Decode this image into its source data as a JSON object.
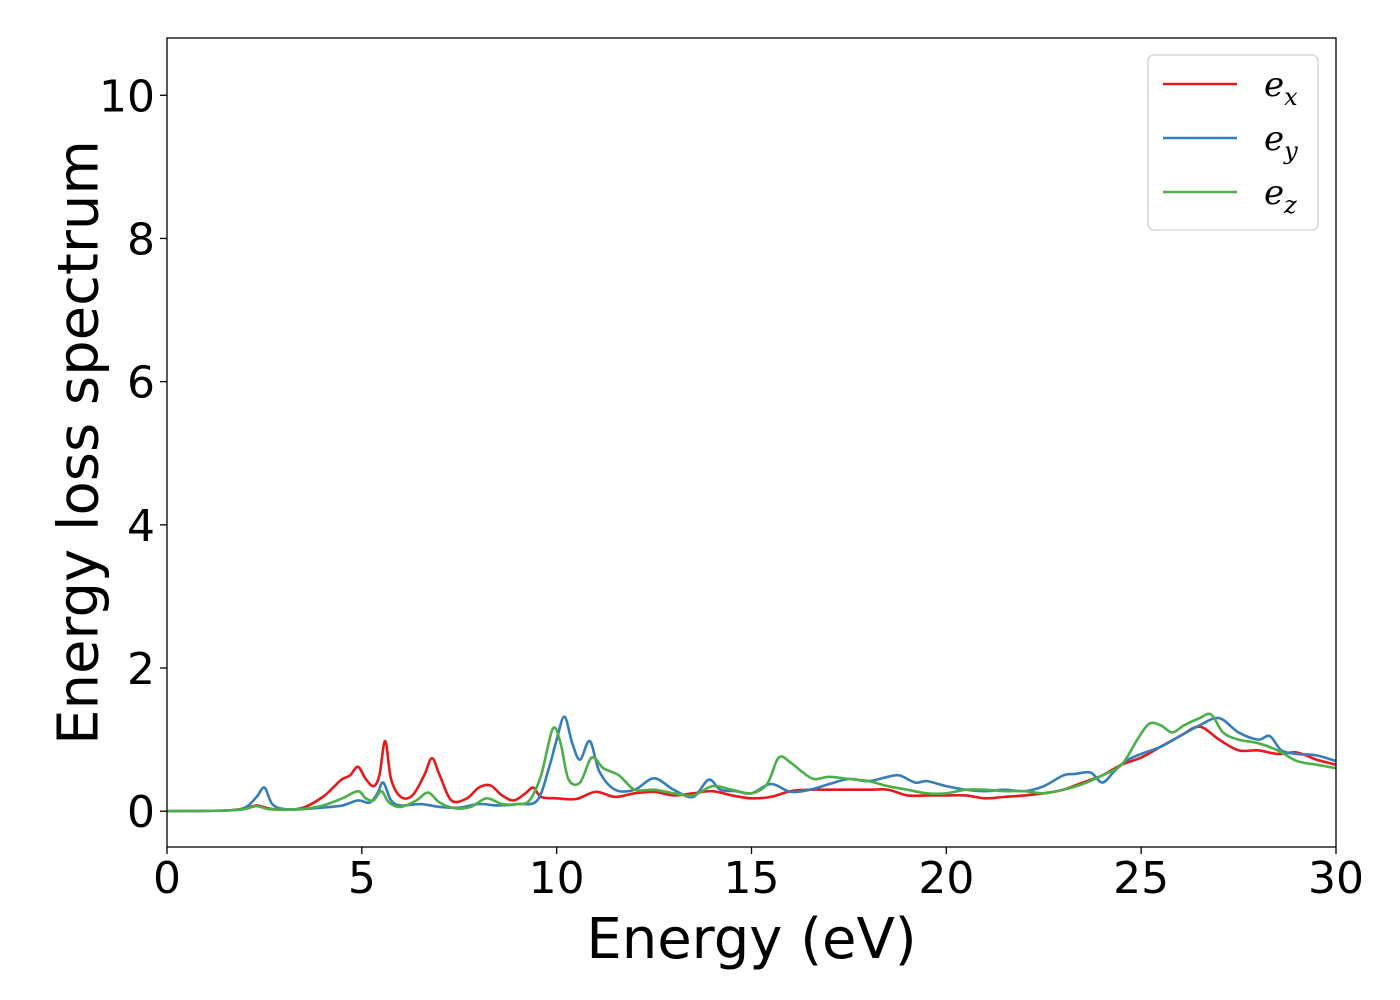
{
  "chart_data": {
    "type": "line",
    "title": "",
    "xlabel": "Energy (eV)",
    "ylabel": "Energy loss spectrum",
    "xlim": [
      0,
      30
    ],
    "ylim": [
      -0.5,
      10.8
    ],
    "xticks": [
      0,
      5,
      10,
      15,
      20,
      25,
      30
    ],
    "yticks": [
      0,
      2,
      4,
      6,
      8,
      10
    ],
    "grid": false,
    "legend_position": "top-right",
    "series": [
      {
        "name": "e_x",
        "label_base": "e",
        "label_sub": "x",
        "color": "#e41a1c",
        "x": [
          0,
          1.5,
          2.0,
          2.3,
          2.6,
          3.0,
          3.5,
          4.0,
          4.3,
          4.5,
          4.7,
          4.9,
          5.1,
          5.3,
          5.45,
          5.6,
          5.75,
          6.0,
          6.3,
          6.6,
          6.8,
          7.0,
          7.3,
          7.7,
          8.0,
          8.3,
          8.6,
          8.9,
          9.2,
          9.4,
          9.6,
          10.0,
          10.5,
          11.0,
          11.5,
          12.0,
          12.5,
          13.0,
          13.5,
          14.0,
          14.5,
          15.0,
          15.5,
          16.0,
          16.5,
          17.0,
          17.5,
          18.0,
          18.5,
          19.0,
          19.5,
          20.0,
          20.5,
          21.0,
          21.5,
          22.0,
          22.5,
          23.0,
          23.5,
          24.0,
          24.5,
          25.0,
          25.5,
          26.0,
          26.5,
          27.0,
          27.5,
          28.0,
          28.5,
          29.0,
          29.5,
          30.0
        ],
        "values": [
          0.0,
          0.01,
          0.04,
          0.08,
          0.04,
          0.02,
          0.05,
          0.2,
          0.35,
          0.45,
          0.5,
          0.62,
          0.45,
          0.35,
          0.5,
          0.98,
          0.45,
          0.2,
          0.22,
          0.5,
          0.74,
          0.5,
          0.15,
          0.18,
          0.33,
          0.36,
          0.22,
          0.15,
          0.25,
          0.33,
          0.2,
          0.18,
          0.17,
          0.27,
          0.2,
          0.25,
          0.27,
          0.22,
          0.25,
          0.28,
          0.22,
          0.18,
          0.2,
          0.28,
          0.3,
          0.3,
          0.3,
          0.3,
          0.3,
          0.22,
          0.22,
          0.22,
          0.22,
          0.18,
          0.2,
          0.22,
          0.25,
          0.3,
          0.4,
          0.5,
          0.65,
          0.75,
          0.9,
          1.05,
          1.18,
          1.0,
          0.85,
          0.85,
          0.8,
          0.82,
          0.72,
          0.65
        ]
      },
      {
        "name": "e_y",
        "label_base": "e",
        "label_sub": "y",
        "color": "#377eb8",
        "x": [
          0,
          1.5,
          2.0,
          2.3,
          2.5,
          2.7,
          3.0,
          3.5,
          4.0,
          4.5,
          4.9,
          5.2,
          5.4,
          5.55,
          5.75,
          6.0,
          6.5,
          7.0,
          7.5,
          8.0,
          8.5,
          9.0,
          9.5,
          9.8,
          10.0,
          10.2,
          10.4,
          10.6,
          10.85,
          11.1,
          11.5,
          12.0,
          12.5,
          13.0,
          13.5,
          13.9,
          14.2,
          14.6,
          15.0,
          15.5,
          16.0,
          16.5,
          17.0,
          17.5,
          18.0,
          18.5,
          18.8,
          19.2,
          19.5,
          20.0,
          20.5,
          21.0,
          21.5,
          22.0,
          22.5,
          23.0,
          23.3,
          23.7,
          24.0,
          24.3,
          24.6,
          25.0,
          25.5,
          26.0,
          26.5,
          27.0,
          27.5,
          28.0,
          28.3,
          28.6,
          29.0,
          29.5,
          30.0
        ],
        "values": [
          0.0,
          0.01,
          0.05,
          0.2,
          0.33,
          0.1,
          0.03,
          0.03,
          0.05,
          0.08,
          0.15,
          0.12,
          0.25,
          0.4,
          0.15,
          0.08,
          0.1,
          0.06,
          0.05,
          0.1,
          0.08,
          0.1,
          0.15,
          0.6,
          1.0,
          1.32,
          0.95,
          0.72,
          0.98,
          0.55,
          0.3,
          0.3,
          0.46,
          0.3,
          0.2,
          0.44,
          0.3,
          0.28,
          0.25,
          0.38,
          0.27,
          0.3,
          0.38,
          0.45,
          0.42,
          0.48,
          0.5,
          0.4,
          0.42,
          0.35,
          0.3,
          0.28,
          0.3,
          0.28,
          0.35,
          0.5,
          0.52,
          0.54,
          0.4,
          0.55,
          0.7,
          0.8,
          0.9,
          1.05,
          1.2,
          1.3,
          1.1,
          1.0,
          1.05,
          0.85,
          0.8,
          0.78,
          0.7
        ]
      },
      {
        "name": "e_z",
        "label_base": "e",
        "label_sub": "z",
        "color": "#4daf4a",
        "x": [
          0,
          1.5,
          2.0,
          2.3,
          2.6,
          3.0,
          3.5,
          4.0,
          4.5,
          4.9,
          5.1,
          5.3,
          5.5,
          5.7,
          6.0,
          6.4,
          6.7,
          7.0,
          7.4,
          7.8,
          8.2,
          8.6,
          9.0,
          9.3,
          9.6,
          9.9,
          10.1,
          10.3,
          10.6,
          10.9,
          11.2,
          11.6,
          12.0,
          12.5,
          13.0,
          13.5,
          14.0,
          14.5,
          15.0,
          15.4,
          15.7,
          16.0,
          16.3,
          16.6,
          17.0,
          17.5,
          18.0,
          18.5,
          19.0,
          19.5,
          20.0,
          20.5,
          21.0,
          21.5,
          22.0,
          22.5,
          23.0,
          23.5,
          24.0,
          24.5,
          24.9,
          25.2,
          25.5,
          25.8,
          26.1,
          26.5,
          26.8,
          27.1,
          27.5,
          28.0,
          28.5,
          29.0,
          29.5,
          30.0
        ],
        "values": [
          0.0,
          0.01,
          0.03,
          0.07,
          0.03,
          0.02,
          0.03,
          0.08,
          0.18,
          0.28,
          0.18,
          0.15,
          0.28,
          0.12,
          0.06,
          0.15,
          0.26,
          0.12,
          0.04,
          0.06,
          0.18,
          0.1,
          0.1,
          0.15,
          0.5,
          1.15,
          0.95,
          0.45,
          0.4,
          0.75,
          0.6,
          0.5,
          0.3,
          0.3,
          0.25,
          0.22,
          0.35,
          0.3,
          0.25,
          0.38,
          0.75,
          0.68,
          0.55,
          0.45,
          0.48,
          0.45,
          0.42,
          0.35,
          0.3,
          0.25,
          0.25,
          0.3,
          0.3,
          0.28,
          0.28,
          0.25,
          0.3,
          0.38,
          0.5,
          0.65,
          1.0,
          1.22,
          1.2,
          1.1,
          1.2,
          1.3,
          1.35,
          1.1,
          1.0,
          0.95,
          0.85,
          0.7,
          0.65,
          0.6
        ]
      }
    ]
  }
}
